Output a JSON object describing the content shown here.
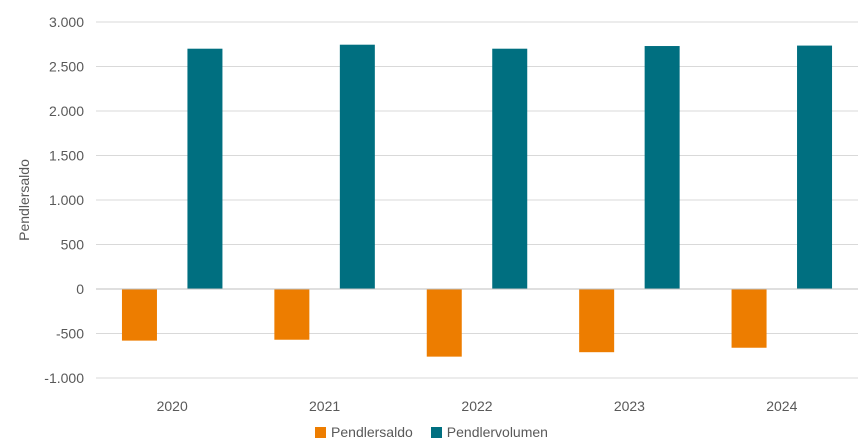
{
  "chart_data": {
    "type": "bar",
    "categories": [
      "2020",
      "2021",
      "2022",
      "2023",
      "2024"
    ],
    "series": [
      {
        "name": "Pendlersaldo",
        "color": "#ED7D00",
        "values": [
          -580,
          -570,
          -760,
          -710,
          -660
        ]
      },
      {
        "name": "Pendlervolumen",
        "color": "#006F80",
        "values": [
          2700,
          2745,
          2700,
          2730,
          2735
        ]
      }
    ],
    "ylabel": "Pendlersaldo",
    "xlabel": "",
    "ylim": [
      -1000,
      3000
    ],
    "yticks": [
      -1000,
      -500,
      0,
      500,
      1000,
      1500,
      2000,
      2500,
      3000
    ],
    "ytick_labels": [
      "-1.000",
      "-500",
      "0",
      "500",
      "1.000",
      "1.500",
      "2.000",
      "2.500",
      "3.000"
    ],
    "grid": true,
    "legend_position": "bottom"
  }
}
